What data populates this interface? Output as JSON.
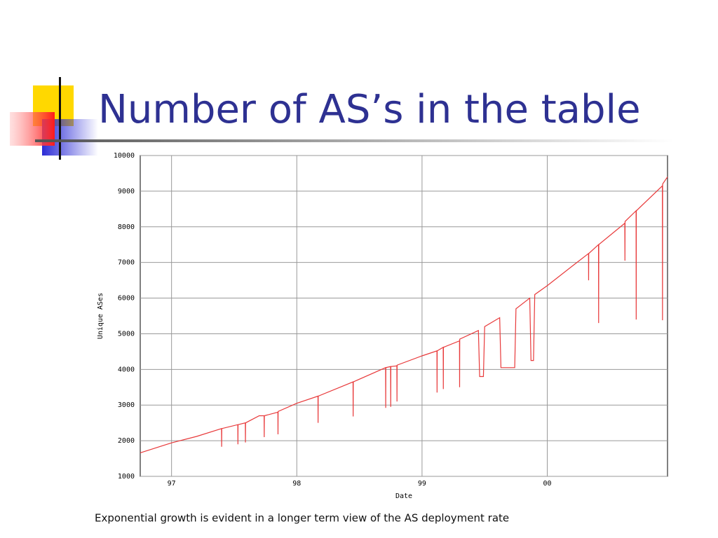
{
  "slide": {
    "title": "Number of AS’s in the table",
    "caption": "Exponential growth is evident in a longer term view of the AS deployment rate"
  },
  "chart_data": {
    "type": "line",
    "xlabel": "Date",
    "ylabel": "Unique ASes",
    "grid": true,
    "xlim": [
      1996.75,
      2000.96
    ],
    "ylim": [
      1000,
      10000
    ],
    "xticks": [
      {
        "value": 1997,
        "label": "97"
      },
      {
        "value": 1998,
        "label": "98"
      },
      {
        "value": 1999,
        "label": "99"
      },
      {
        "value": 2000,
        "label": "00"
      }
    ],
    "yticks": [
      1000,
      2000,
      3000,
      4000,
      5000,
      6000,
      7000,
      8000,
      9000,
      10000
    ],
    "series": [
      {
        "color": "#e8393a",
        "x": [
          1996.75,
          1997.0,
          1997.2,
          1997.399,
          1997.4,
          1997.401,
          1997.529,
          1997.53,
          1997.531,
          1997.589,
          1997.59,
          1997.591,
          1997.7,
          1997.739,
          1997.74,
          1997.741,
          1997.849,
          1997.85,
          1997.851,
          1998.0,
          1998.169,
          1998.17,
          1998.171,
          1998.449,
          1998.45,
          1998.451,
          1998.709,
          1998.71,
          1998.711,
          1998.749,
          1998.75,
          1998.751,
          1998.799,
          1998.8,
          1998.801,
          1999.0,
          1999.119,
          1999.12,
          1999.121,
          1999.169,
          1999.17,
          1999.171,
          1999.299,
          1999.3,
          1999.301,
          1999.45,
          1999.46,
          1999.49,
          1999.5,
          1999.62,
          1999.63,
          1999.74,
          1999.75,
          1999.86,
          1999.87,
          1999.89,
          1999.9,
          2000.0,
          2000.2,
          2000.329,
          2000.33,
          2000.331,
          2000.409,
          2000.41,
          2000.411,
          2000.619,
          2000.62,
          2000.621,
          2000.709,
          2000.71,
          2000.711,
          2000.919,
          2000.92,
          2000.921,
          2000.96
        ],
        "values": [
          1660,
          1940,
          2120,
          2340,
          1830,
          2340,
          2450,
          1900,
          2450,
          2500,
          1950,
          2500,
          2700,
          2700,
          2100,
          2700,
          2800,
          2180,
          2820,
          3050,
          3250,
          2500,
          3250,
          3650,
          2680,
          3650,
          4050,
          2920,
          4050,
          4080,
          2950,
          4080,
          4100,
          3100,
          4120,
          4380,
          4520,
          3350,
          4520,
          4620,
          3450,
          4620,
          4800,
          3500,
          4850,
          5090,
          3800,
          3800,
          5200,
          5450,
          4050,
          4050,
          5700,
          6000,
          4250,
          4250,
          6100,
          6350,
          6900,
          7250,
          6500,
          7250,
          7500,
          5300,
          7500,
          8100,
          7050,
          8150,
          8450,
          5400,
          8450,
          9150,
          5380,
          9200,
          9400
        ]
      }
    ]
  }
}
